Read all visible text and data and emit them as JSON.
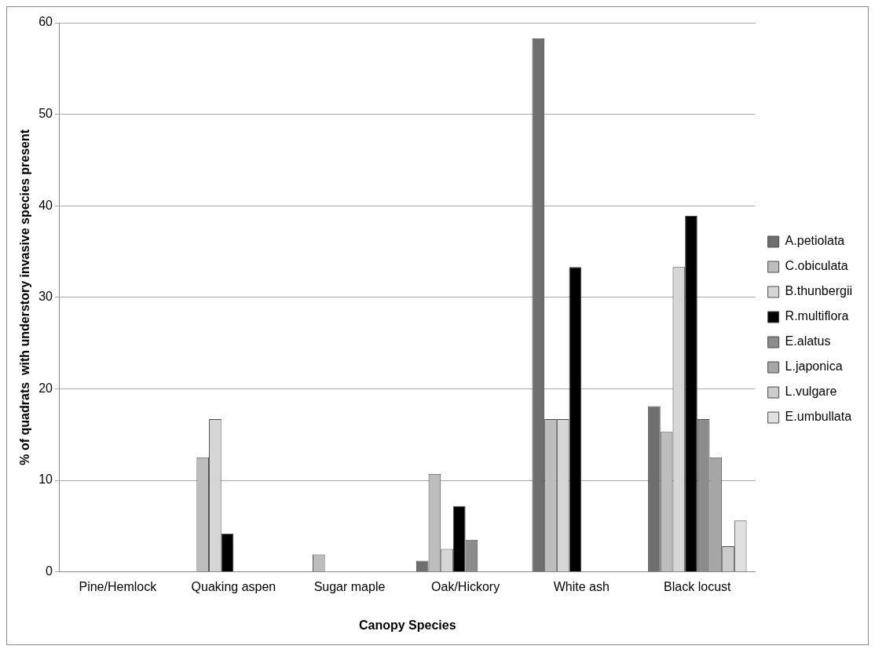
{
  "chart_data": {
    "type": "bar",
    "xlabel": "Canopy Species",
    "ylabel": "% of quadrats  with understory invasive species present",
    "categories": [
      "Pine/Hemlock",
      "Quaking aspen",
      "Sugar maple",
      "Oak/Hickory",
      "White ash",
      "Black locust"
    ],
    "series": [
      {
        "name": "A.petiolata",
        "color": "#6e6e6e",
        "values": [
          0,
          0,
          0,
          1.2,
          58.3,
          18.1
        ]
      },
      {
        "name": "C.obiculata",
        "color": "#bdbdbd",
        "values": [
          0,
          12.5,
          1.9,
          10.7,
          16.7,
          15.3
        ]
      },
      {
        "name": "B.thunbergii",
        "color": "#d6d6d6",
        "values": [
          0,
          16.7,
          0,
          2.5,
          16.7,
          33.3
        ]
      },
      {
        "name": "R.multiflora",
        "color": "#000000",
        "values": [
          0,
          4.2,
          0,
          7.2,
          33.3,
          38.9
        ]
      },
      {
        "name": "E.alatus",
        "color": "#8c8c8c",
        "values": [
          0,
          0,
          0,
          3.5,
          0,
          16.7
        ]
      },
      {
        "name": "L.japonica",
        "color": "#a6a6a6",
        "values": [
          0,
          0,
          0,
          0,
          0,
          12.5
        ]
      },
      {
        "name": "L.vulgare",
        "color": "#cccccc",
        "values": [
          0,
          0,
          0,
          0,
          0,
          2.8
        ]
      },
      {
        "name": "E.umbullata",
        "color": "#e0e0e0",
        "values": [
          0,
          0,
          0,
          0,
          0,
          5.6
        ]
      }
    ],
    "ylim": [
      0,
      60
    ],
    "yticks": [
      0,
      10,
      20,
      30,
      40,
      50,
      60
    ],
    "grid": "y",
    "legend": "right"
  }
}
